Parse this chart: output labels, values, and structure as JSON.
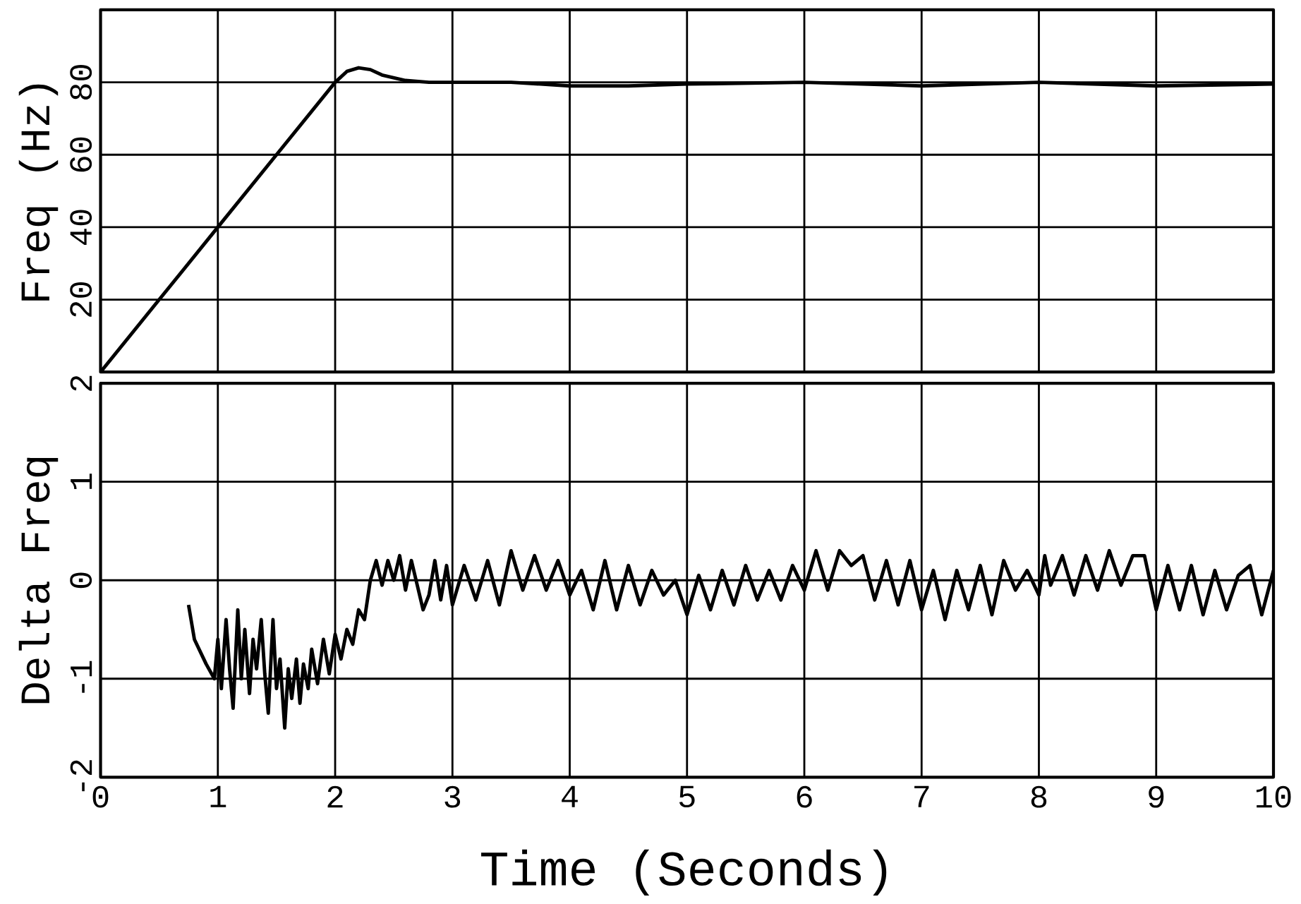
{
  "chart_data": [
    {
      "type": "line",
      "ylabel": "Freq (Hz)",
      "xlim": [
        0,
        10
      ],
      "xticks": [
        0,
        1,
        2,
        3,
        4,
        5,
        6,
        7,
        8,
        9,
        10
      ],
      "ylim": [
        0,
        100
      ],
      "yticks": [
        20,
        40,
        60,
        80
      ],
      "grid": true,
      "tick_labels": "y",
      "x": [
        0,
        0.5,
        1,
        1.5,
        2,
        2.1,
        2.2,
        2.3,
        2.4,
        2.6,
        2.8,
        3.5,
        4,
        4.5,
        5,
        6,
        7,
        8,
        9,
        10
      ],
      "series": [
        {
          "color": "#000000",
          "values": [
            0,
            20,
            40,
            60,
            80,
            83,
            84,
            83.5,
            82,
            80.5,
            80,
            80,
            79,
            79,
            79.5,
            80,
            79,
            80,
            79,
            79.5
          ]
        }
      ]
    },
    {
      "type": "line",
      "ylabel": "Delta Freq",
      "xlabel": "Time (Seconds)",
      "xlim": [
        0,
        10
      ],
      "xticks": [
        0,
        1,
        2,
        3,
        4,
        5,
        6,
        7,
        8,
        9,
        10
      ],
      "ylim": [
        -2,
        2
      ],
      "yticks": [
        -2,
        -1,
        0,
        1,
        2
      ],
      "grid": true,
      "x": [
        0.75,
        0.8,
        0.9,
        0.97,
        1.0,
        1.03,
        1.07,
        1.1,
        1.13,
        1.17,
        1.2,
        1.23,
        1.27,
        1.3,
        1.33,
        1.37,
        1.4,
        1.43,
        1.47,
        1.5,
        1.53,
        1.57,
        1.6,
        1.63,
        1.67,
        1.7,
        1.73,
        1.77,
        1.8,
        1.85,
        1.9,
        1.95,
        2.0,
        2.05,
        2.1,
        2.15,
        2.2,
        2.25,
        2.3,
        2.35,
        2.4,
        2.45,
        2.5,
        2.55,
        2.6,
        2.65,
        2.7,
        2.75,
        2.8,
        2.85,
        2.9,
        2.95,
        3.0,
        3.1,
        3.2,
        3.3,
        3.4,
        3.5,
        3.6,
        3.7,
        3.8,
        3.9,
        4.0,
        4.1,
        4.2,
        4.3,
        4.4,
        4.5,
        4.6,
        4.7,
        4.8,
        4.9,
        5.0,
        5.1,
        5.2,
        5.3,
        5.4,
        5.5,
        5.6,
        5.7,
        5.8,
        5.9,
        6.0,
        6.1,
        6.2,
        6.3,
        6.4,
        6.5,
        6.6,
        6.7,
        6.8,
        6.9,
        7.0,
        7.1,
        7.2,
        7.3,
        7.4,
        7.5,
        7.6,
        7.7,
        7.8,
        7.9,
        8.0,
        8.05,
        8.1,
        8.2,
        8.3,
        8.4,
        8.5,
        8.6,
        8.7,
        8.8,
        8.9,
        9.0,
        9.1,
        9.2,
        9.3,
        9.4,
        9.5,
        9.6,
        9.7,
        9.8,
        9.9,
        10.0
      ],
      "series": [
        {
          "color": "#000000",
          "values": [
            -0.25,
            -0.6,
            -0.85,
            -1.0,
            -0.6,
            -1.1,
            -0.4,
            -0.9,
            -1.3,
            -0.3,
            -1.0,
            -0.5,
            -1.15,
            -0.6,
            -0.9,
            -0.4,
            -0.95,
            -1.35,
            -0.4,
            -1.1,
            -0.8,
            -1.5,
            -0.9,
            -1.2,
            -0.8,
            -1.25,
            -0.85,
            -1.1,
            -0.7,
            -1.05,
            -0.6,
            -0.95,
            -0.55,
            -0.8,
            -0.5,
            -0.65,
            -0.3,
            -0.4,
            0.0,
            0.2,
            -0.05,
            0.2,
            0.0,
            0.25,
            -0.1,
            0.2,
            -0.05,
            -0.3,
            -0.15,
            0.2,
            -0.2,
            0.15,
            -0.25,
            0.15,
            -0.2,
            0.2,
            -0.25,
            0.3,
            -0.1,
            0.25,
            -0.1,
            0.2,
            -0.15,
            0.1,
            -0.3,
            0.2,
            -0.3,
            0.15,
            -0.25,
            0.1,
            -0.15,
            0.0,
            -0.35,
            0.05,
            -0.3,
            0.1,
            -0.25,
            0.15,
            -0.2,
            0.1,
            -0.2,
            0.15,
            -0.1,
            0.3,
            -0.1,
            0.3,
            0.15,
            0.25,
            -0.2,
            0.2,
            -0.25,
            0.2,
            -0.3,
            0.1,
            -0.4,
            0.1,
            -0.3,
            0.15,
            -0.35,
            0.2,
            -0.1,
            0.1,
            -0.15,
            0.25,
            -0.05,
            0.25,
            -0.15,
            0.25,
            -0.1,
            0.3,
            -0.05,
            0.25,
            0.25,
            -0.3,
            0.15,
            -0.3,
            0.15,
            -0.35,
            0.1,
            -0.3,
            0.05,
            0.15,
            -0.35,
            0.1
          ]
        }
      ]
    }
  ]
}
